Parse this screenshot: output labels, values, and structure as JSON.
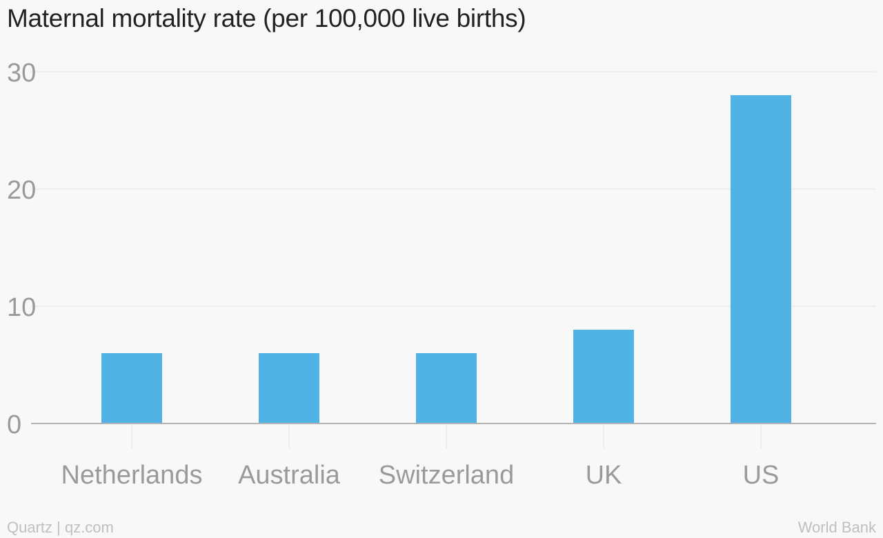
{
  "chart_data": {
    "type": "bar",
    "title": "Maternal mortality rate (per 100,000 live births)",
    "categories": [
      "Netherlands",
      "Australia",
      "Switzerland",
      "UK",
      "US"
    ],
    "values": [
      6,
      6,
      6,
      8,
      28
    ],
    "xlabel": "",
    "ylabel": "",
    "ylim": [
      0,
      30
    ],
    "yticks": [
      0,
      10,
      20,
      30
    ],
    "grid": true,
    "legend": "none"
  },
  "colors": {
    "bar": "#51b2e5",
    "grid": "#e6e6e6",
    "axis": "#b3b3b3",
    "tick_label": "#9a9a9a"
  },
  "footer": {
    "credit": "Quartz | qz.com",
    "source": "World Bank"
  }
}
